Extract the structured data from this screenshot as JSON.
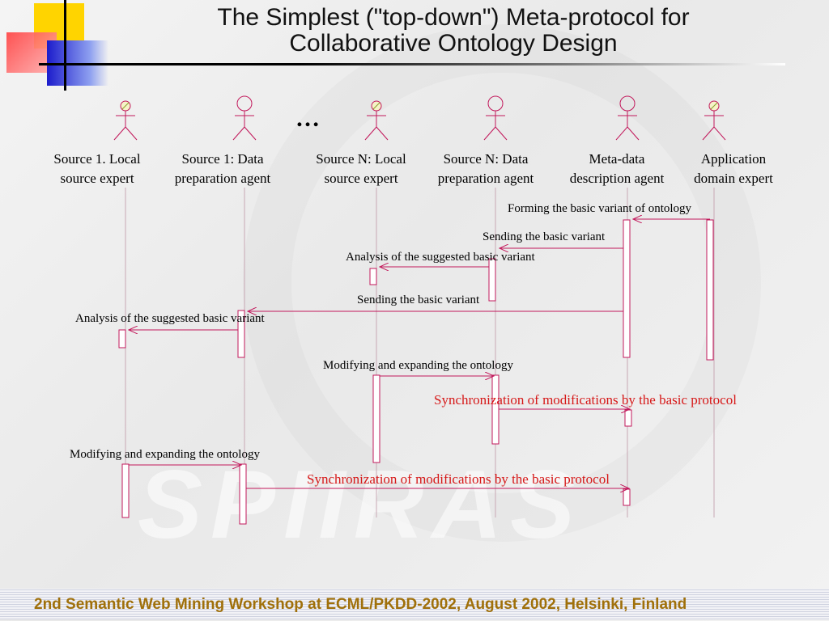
{
  "title": {
    "line1": "The Simplest (\"top-down\") Meta-protocol for",
    "line2": "Collaborative Ontology Design"
  },
  "ellipsis": "…",
  "actors": [
    {
      "line1": "Source 1. Local",
      "line2": "source expert",
      "icon": "expert-actor-icon"
    },
    {
      "line1": "Source 1: Data",
      "line2": "preparation agent",
      "icon": "agent-actor-icon"
    },
    {
      "line1": "Source N:  Local",
      "line2": "source expert",
      "icon": "expert-actor-icon"
    },
    {
      "line1": "Source N: Data",
      "line2": "preparation agent",
      "icon": "agent-actor-icon"
    },
    {
      "line1": "Meta-data",
      "line2": "description agent",
      "icon": "agent-actor-icon"
    },
    {
      "line1": "Application",
      "line2": "domain expert",
      "icon": "expert-actor-icon"
    }
  ],
  "messages": [
    {
      "label": "Forming the basic variant of ontology"
    },
    {
      "label": "Sending the basic variant"
    },
    {
      "label": "Analysis of the suggested basic variant"
    },
    {
      "label": "Sending the basic variant"
    },
    {
      "label": "Analysis of the suggested basic variant"
    },
    {
      "label": "Modifying and expanding the ontology"
    },
    {
      "label": "Synchronization of modifications by the basic protocol"
    },
    {
      "label": "Modifying and expanding the ontology"
    },
    {
      "label": "Synchronization of modifications by the basic protocol"
    }
  ],
  "colors": {
    "lifeline": "#c8a8b4",
    "activation": "#c2185b",
    "message_arrow": "#c2185b",
    "highlight_text": "#d61818",
    "footer_text": "#a0700a"
  },
  "footer": "2nd Semantic Web Mining Workshop at ECML/PKDD-2002, August 2002, Helsinki, Finland"
}
